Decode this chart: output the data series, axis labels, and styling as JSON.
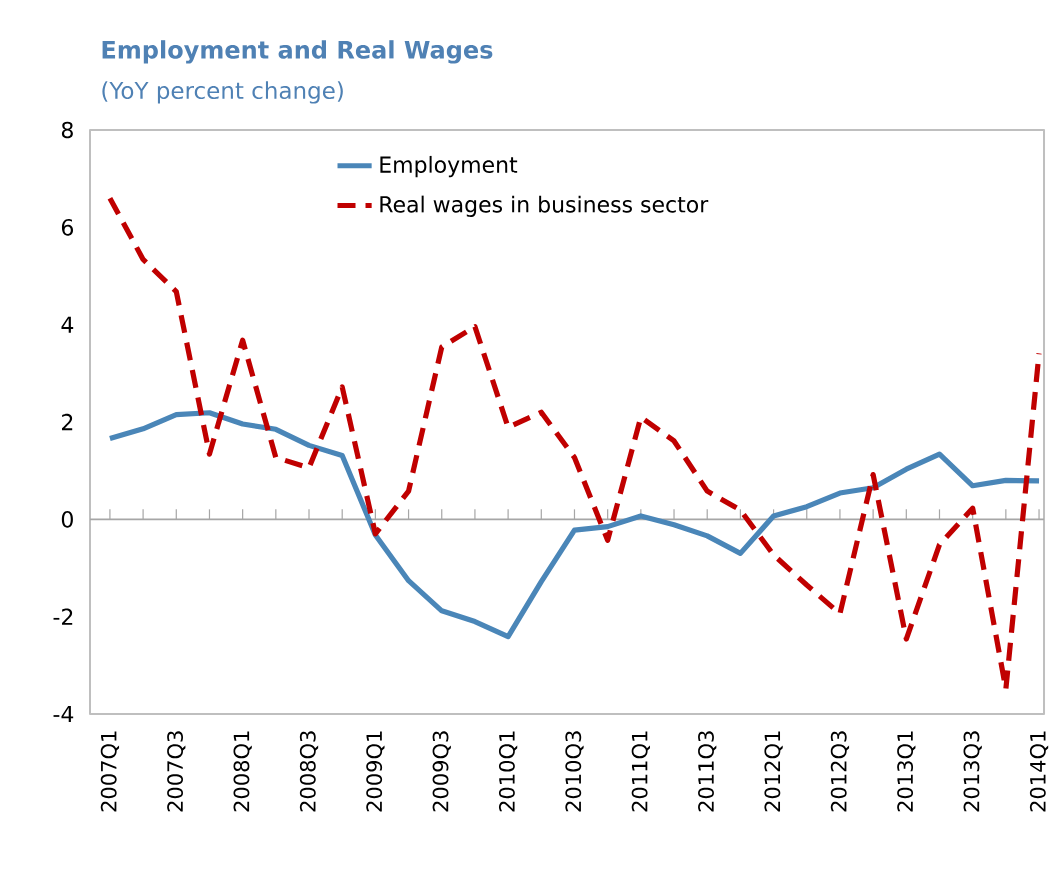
{
  "chart_data": {
    "type": "line",
    "title": "Employment and Real Wages",
    "subtitle": "(YoY percent change)",
    "categories": [
      "2007Q1",
      null,
      "2007Q3",
      null,
      "2008Q1",
      null,
      "2008Q3",
      null,
      "2009Q1",
      null,
      "2009Q3",
      null,
      "2010Q1",
      null,
      "2010Q3",
      null,
      "2011Q1",
      null,
      "2011Q3",
      null,
      "2012Q1",
      null,
      "2012Q3",
      null,
      "2013Q1",
      null,
      "2013Q3",
      null,
      "2014Q1"
    ],
    "series": [
      {
        "name": "Employment",
        "color": "#4a86b8",
        "line_style": "solid",
        "values": [
          1.66,
          1.86,
          2.15,
          2.19,
          1.96,
          1.85,
          1.52,
          1.31,
          -0.32,
          -1.26,
          -1.88,
          -2.1,
          -2.41,
          -1.28,
          -0.22,
          -0.15,
          0.07,
          -0.11,
          -0.34,
          -0.7,
          0.07,
          0.26,
          0.54,
          0.65,
          1.03,
          1.34,
          0.69,
          0.8,
          0.79
        ]
      },
      {
        "name": "Real wages in business sector",
        "color": "#c00000",
        "line_style": "dashed",
        "values": [
          6.6,
          5.34,
          4.68,
          1.34,
          3.68,
          1.27,
          1.06,
          2.72,
          -0.3,
          0.58,
          3.54,
          3.96,
          1.89,
          2.2,
          1.27,
          -0.43,
          2.1,
          1.61,
          0.58,
          0.19,
          -0.73,
          -1.35,
          -1.94,
          0.92,
          -2.46,
          -0.52,
          0.23,
          -3.49,
          3.41
        ]
      }
    ],
    "ylim": [
      -4,
      8
    ],
    "yticks": [
      -4,
      -2,
      0,
      2,
      4,
      6,
      8
    ],
    "ref_lines": [
      {
        "axis": "y",
        "value": 0,
        "color": "#a6a6a6"
      }
    ],
    "legend": "top",
    "marker": "none"
  }
}
